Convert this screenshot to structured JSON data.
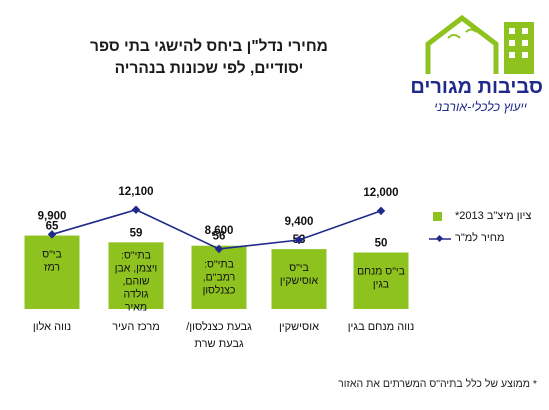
{
  "title_lines": [
    "מחירי נדל\"ן ביחס להישגי בתי ספר",
    "יסודיים, לפי שכונות בנהריה"
  ],
  "footnote": "* ממוצע של כלל בתיה\"ס המשרתים את האזור",
  "logo": {
    "name": "סביבות מגורים",
    "tagline": "ייעוץ כלכלי-אורבני"
  },
  "legend": {
    "bar": "ציון מיצ\"ב 2013*",
    "line": "מחיר למ\"ר"
  },
  "colors": {
    "bar": "#8ec31f",
    "line": "#1f2a8a",
    "text": "#111111"
  },
  "chart_data": {
    "type": "bar",
    "categories": [
      "נווה אלון",
      "מרכז העיר",
      "גבעת כצנלסון / גבעת שרת",
      "אוסישקין",
      "נווה מנחם בגין"
    ],
    "series": [
      {
        "name": "ציון מיצ\"ב 2013*",
        "type": "bar",
        "values": [
          65,
          59,
          56,
          53,
          50
        ],
        "value_labels": [
          "65",
          "59",
          "56",
          "53",
          "50"
        ],
        "bar_text": [
          "בי\"ס\nרמז",
          "בתי\"ס:\nויצמן, אבן\nשוהם,\nגולדה\nמאיר",
          "בתי\"ס:\nרמב\"ם,\nכצנלסון",
          "בי\"ס\nאוסישקין",
          "בי\"ס מנחם\nבגין"
        ]
      },
      {
        "name": "מחיר למ\"ר",
        "type": "line",
        "values": [
          9900,
          12100,
          8600,
          9400,
          12000
        ],
        "value_labels": [
          "9,900",
          "12,100",
          "8,600",
          "9,400",
          "12,000"
        ]
      }
    ],
    "legend_position": "right",
    "grid": false
  }
}
